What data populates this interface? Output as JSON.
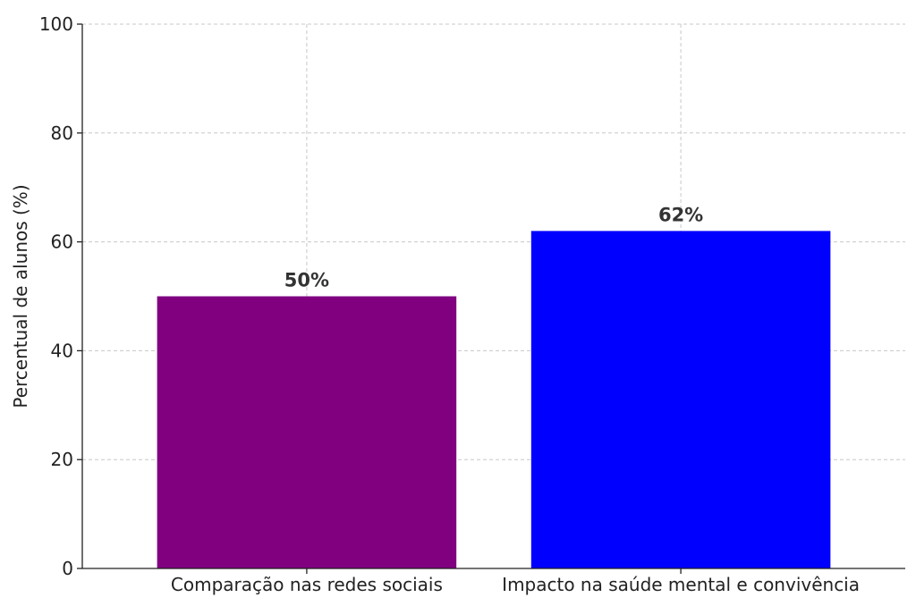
{
  "chart_data": {
    "type": "bar",
    "categories": [
      "Comparação nas redes sociais",
      "Impacto na saúde mental e convivência"
    ],
    "values": [
      50,
      62
    ],
    "data_labels": [
      "50%",
      "62%"
    ],
    "colors": [
      "#800080",
      "#0000ff"
    ],
    "title": "",
    "xlabel": "",
    "ylabel": "Percentual de alunos (%)",
    "ylim": [
      0,
      100
    ],
    "yticks": [
      0,
      20,
      40,
      60,
      80,
      100
    ],
    "grid": true
  }
}
